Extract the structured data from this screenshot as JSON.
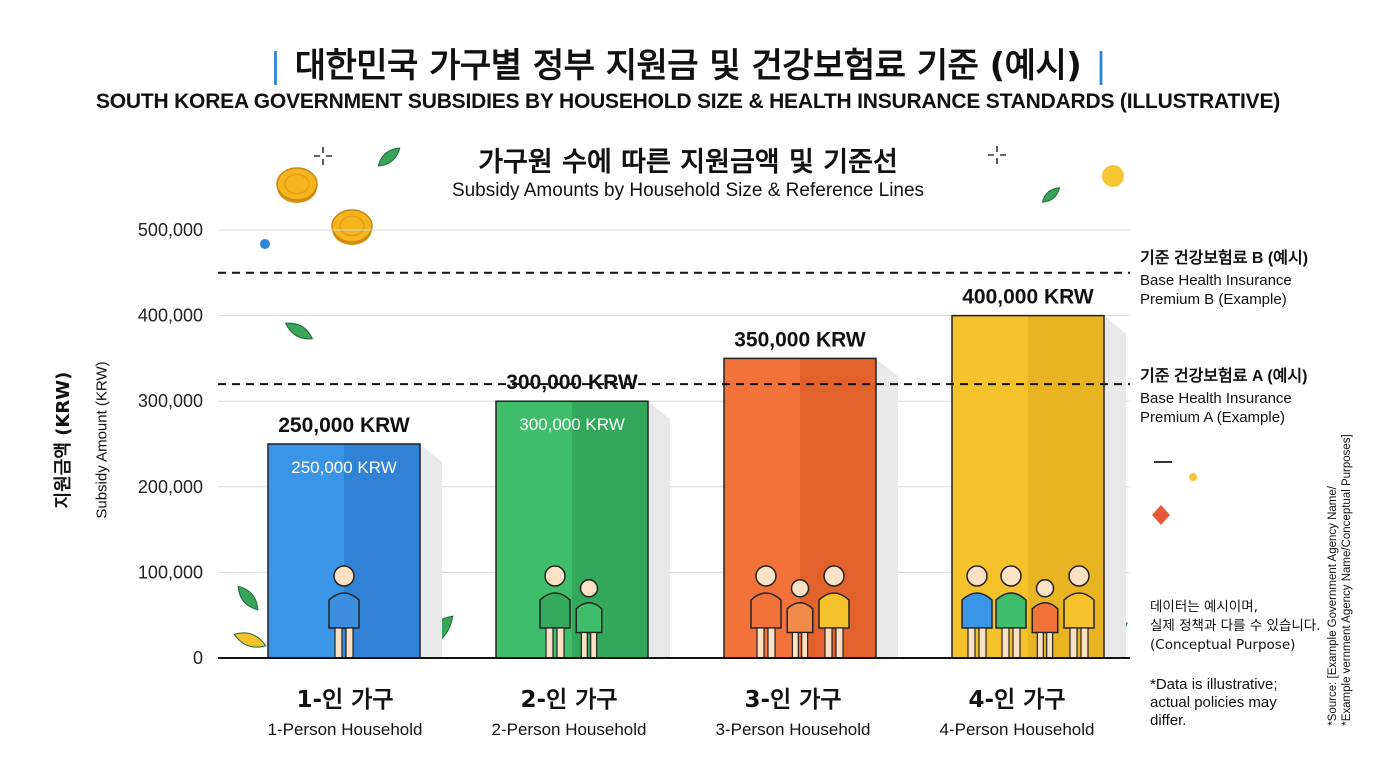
{
  "header": {
    "title_ko": "대한민국 가구별 정부 지원금 및 건강보험료 기준 (예시)",
    "title_bar": "|",
    "title_en": "SOUTH KOREA GOVERNMENT SUBSIDIES BY HOUSEHOLD SIZE & HEALTH INSURANCE STANDARDS (ILLUSTRATIVE)",
    "chart_title_ko": "가구원 수에 따른 지원금액 및 기준선",
    "chart_title_en": "Subsidy Amounts by Household Size & Reference Lines"
  },
  "chart_data": {
    "type": "bar",
    "categories": [
      "1-인 가구",
      "2-인 가구",
      "3-인 가구",
      "4-인 가구"
    ],
    "categories_en": [
      "1-Person Household",
      "2-Person Household",
      "3-Person Household",
      "4-Person Household"
    ],
    "values": [
      250000,
      300000,
      350000,
      400000
    ],
    "data_labels_top": [
      "250,000 KRW",
      "300,000 KRW",
      "350,000 KRW",
      "400,000 KRW"
    ],
    "data_labels_inner": [
      "250,000 KRW",
      "300,000 KRW",
      "",
      ""
    ],
    "bar_colors": [
      "#3b95e6",
      "#3fbd6b",
      "#f2733a",
      "#f5c22c"
    ],
    "bar_colors_dark": [
      "#2f82d4",
      "#33a85c",
      "#e2622c",
      "#e8b423"
    ],
    "ylabel_ko": "지원금액 (KRW)",
    "ylabel_en": "Subsidy Amount (KRW)",
    "ylim": [
      0,
      500000
    ],
    "yticks": [
      0,
      100000,
      200000,
      300000,
      400000,
      500000
    ],
    "ytick_labels": [
      "0",
      "100,000",
      "200,000",
      "300,000",
      "400,000",
      "500,000"
    ],
    "grid": true,
    "reference_lines": [
      {
        "value": 450000,
        "label_ko": "기준 건강보험료 B (예시)",
        "label_en_1": "Base Health Insurance",
        "label_en_2": "Premium B (Example)"
      },
      {
        "value": 320000,
        "label_ko": "기준 건강보험료 A (예시)",
        "label_en_1": "Base Health Insurance",
        "label_en_2": "Premium A (Example)"
      }
    ],
    "people_counts": [
      1,
      2,
      3,
      4
    ]
  },
  "notes": {
    "ko_line1": "데이터는 예시이며,",
    "ko_line2": "실제 정책과 다를 수 있습니다.",
    "ko_line3": "(Conceptual Purpose)",
    "en_line1": "*Data is illustrative;",
    "en_line2": "actual policies may",
    "en_line3": "differ.",
    "source_line1": "*Source: [Example Government Agency Name/",
    "source_line2": "*Example vernment Agency Name/Conceptual Purposes]"
  },
  "colors": {
    "accent_blue": "#2f86d6",
    "coin": "#f5b51d",
    "leaf": "#3aa35c"
  }
}
